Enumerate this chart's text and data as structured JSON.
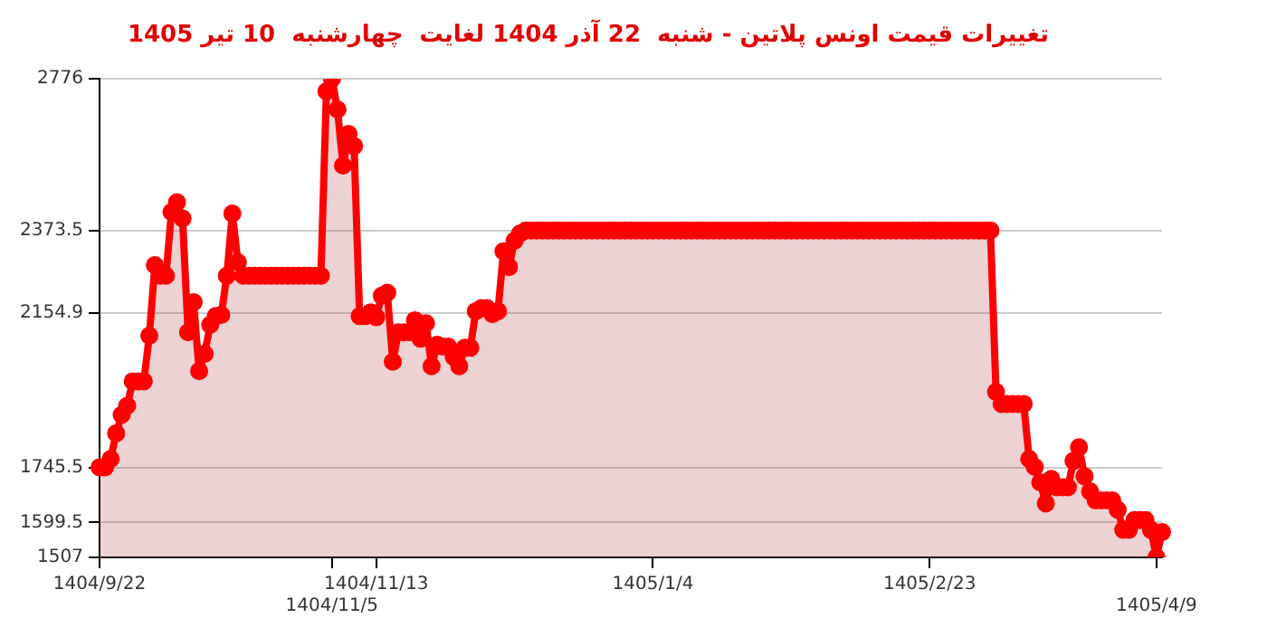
{
  "chart_data": {
    "type": "area",
    "title": "تغییرات قیمت اونس پلاتین - شنبه  22 آذر 1404 لغایت  چهارشنبه  10 تیر 1405",
    "marker": "circle",
    "grid": "y",
    "legend": false,
    "categories": [
      "1404/9/22",
      null,
      null,
      null,
      null,
      null,
      null,
      null,
      null,
      null,
      null,
      null,
      null,
      null,
      null,
      null,
      null,
      null,
      null,
      null,
      null,
      null,
      null,
      null,
      null,
      null,
      null,
      null,
      null,
      null,
      null,
      null,
      null,
      null,
      null,
      null,
      null,
      null,
      null,
      null,
      null,
      null,
      "1404/11/5",
      null,
      null,
      null,
      null,
      null,
      null,
      null,
      "1404/11/13",
      null,
      null,
      null,
      null,
      null,
      null,
      null,
      null,
      null,
      null,
      null,
      null,
      null,
      null,
      null,
      null,
      null,
      null,
      null,
      null,
      null,
      null,
      null,
      null,
      null,
      null,
      null,
      null,
      null,
      null,
      null,
      null,
      null,
      null,
      null,
      null,
      null,
      null,
      null,
      null,
      null,
      null,
      null,
      null,
      null,
      null,
      null,
      null,
      null,
      "1405/1/4",
      null,
      null,
      null,
      null,
      null,
      null,
      null,
      null,
      null,
      null,
      null,
      null,
      null,
      null,
      null,
      null,
      null,
      null,
      null,
      null,
      null,
      null,
      null,
      null,
      null,
      null,
      null,
      null,
      null,
      null,
      null,
      null,
      null,
      null,
      null,
      null,
      null,
      null,
      null,
      null,
      null,
      null,
      null,
      null,
      null,
      null,
      null,
      null,
      null,
      "1405/2/23",
      null,
      null,
      null,
      null,
      null,
      null,
      null,
      null,
      null,
      null,
      null,
      null,
      null,
      null,
      null,
      null,
      null,
      null,
      null,
      null,
      null,
      null,
      null,
      null,
      null,
      null,
      null,
      null,
      null,
      null,
      null,
      null,
      null,
      null,
      null,
      null,
      null,
      null,
      null,
      null,
      "1405/4/9",
      null
    ],
    "ylim": [
      1507,
      2776
    ],
    "yticks": [
      1507,
      1599.5,
      1745.5,
      2154.9,
      2373.5,
      2776
    ],
    "series": [
      {
        "color": "#ff0000",
        "values": [
          1746,
          1746,
          1768,
          1836,
          1885,
          1909,
          1974,
          1974,
          1974,
          2095,
          2282,
          2254,
          2254,
          2423,
          2449,
          2406,
          2104,
          2184,
          2001,
          2047,
          2124,
          2147,
          2150,
          2254,
          2419,
          2290,
          2254,
          2254,
          2254,
          2254,
          2254,
          2254,
          2254,
          2254,
          2254,
          2254,
          2254,
          2254,
          2254,
          2254,
          2254,
          2743,
          2776,
          2695,
          2546,
          2630,
          2598,
          2147,
          2147,
          2157,
          2144,
          2201,
          2209,
          2026,
          2104,
          2104,
          2104,
          2136,
          2087,
          2128,
          2014,
          2071,
          2066,
          2066,
          2039,
          2014,
          2063,
          2063,
          2160,
          2168,
          2168,
          2152,
          2160,
          2319,
          2277,
          2347,
          2366,
          2374,
          2374,
          2374,
          2374,
          2374,
          2374,
          2374,
          2374,
          2374,
          2374,
          2374,
          2374,
          2374,
          2374,
          2374,
          2374,
          2374,
          2374,
          2374,
          2374,
          2374,
          2374,
          2374,
          2374,
          2374,
          2374,
          2374,
          2374,
          2374,
          2374,
          2374,
          2374,
          2374,
          2374,
          2374,
          2374,
          2374,
          2374,
          2374,
          2374,
          2374,
          2374,
          2374,
          2374,
          2374,
          2374,
          2374,
          2374,
          2374,
          2374,
          2374,
          2374,
          2374,
          2374,
          2374,
          2374,
          2374,
          2374,
          2374,
          2374,
          2374,
          2374,
          2374,
          2374,
          2374,
          2374,
          2374,
          2374,
          2374,
          2374,
          2374,
          2374,
          2374,
          2374,
          2374,
          2374,
          2374,
          2374,
          2374,
          2374,
          2374,
          2374,
          2374,
          2374,
          2374,
          1946,
          1914,
          1914,
          1914,
          1914,
          1914,
          1768,
          1747,
          1706,
          1650,
          1715,
          1693,
          1693,
          1693,
          1763,
          1799,
          1722,
          1682,
          1658,
          1658,
          1658,
          1658,
          1633,
          1580,
          1580,
          1606,
          1606,
          1606,
          1580,
          1507,
          1574
        ]
      }
    ]
  }
}
